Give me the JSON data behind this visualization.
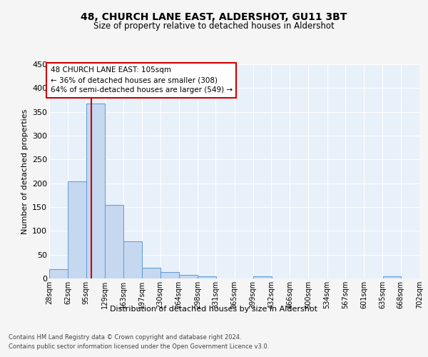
{
  "title": "48, CHURCH LANE EAST, ALDERSHOT, GU11 3BT",
  "subtitle": "Size of property relative to detached houses in Aldershot",
  "xlabel": "Distribution of detached houses by size in Aldershot",
  "ylabel": "Number of detached properties",
  "footnote1": "Contains HM Land Registry data © Crown copyright and database right 2024.",
  "footnote2": "Contains public sector information licensed under the Open Government Licence v3.0.",
  "annotation_line1": "48 CHURCH LANE EAST: 105sqm",
  "annotation_line2": "← 36% of detached houses are smaller (308)",
  "annotation_line3": "64% of semi-detached houses are larger (549) →",
  "property_size": 105,
  "bin_edges": [
    28,
    62,
    95,
    129,
    163,
    197,
    230,
    264,
    298,
    331,
    365,
    399,
    432,
    466,
    500,
    534,
    567,
    601,
    635,
    668,
    702
  ],
  "bin_labels": [
    "28sqm",
    "62sqm",
    "95sqm",
    "129sqm",
    "163sqm",
    "197sqm",
    "230sqm",
    "264sqm",
    "298sqm",
    "331sqm",
    "365sqm",
    "399sqm",
    "432sqm",
    "466sqm",
    "500sqm",
    "534sqm",
    "567sqm",
    "601sqm",
    "635sqm",
    "668sqm",
    "702sqm"
  ],
  "bar_heights": [
    20,
    204,
    368,
    155,
    78,
    22,
    13,
    8,
    5,
    0,
    0,
    5,
    0,
    0,
    0,
    0,
    0,
    0,
    5,
    0,
    0
  ],
  "bar_color": "#c5d8f0",
  "bar_edge_color": "#5b9bd5",
  "vline_x": 105,
  "vline_color": "#cc0000",
  "background_color": "#e8f0fa",
  "grid_color": "#ffffff",
  "fig_bg_color": "#f5f5f5",
  "ylim": [
    0,
    450
  ],
  "yticks": [
    0,
    50,
    100,
    150,
    200,
    250,
    300,
    350,
    400,
    450
  ]
}
